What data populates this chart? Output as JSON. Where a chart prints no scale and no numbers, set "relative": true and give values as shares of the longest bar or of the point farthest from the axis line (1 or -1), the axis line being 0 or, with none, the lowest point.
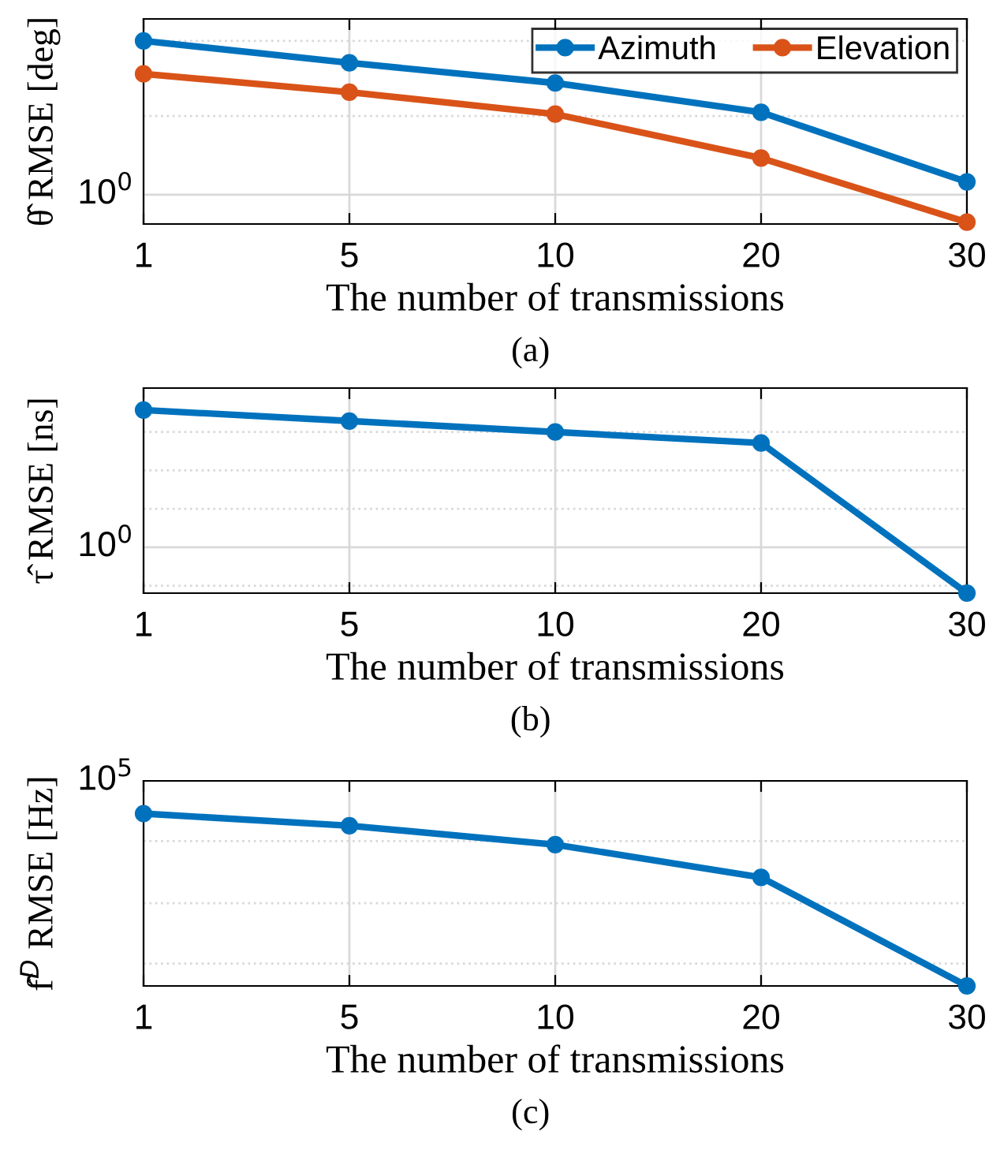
{
  "chart_data": [
    {
      "type": "line",
      "relative": true,
      "categories": [
        "1",
        "5",
        "10",
        "20",
        "30"
      ],
      "xlabel": "The number of transmissions",
      "ylabel": "θ̂ RMSE [deg]",
      "grid": "x",
      "legend": "top right",
      "marker": "circle",
      "line_style": "solid",
      "series": [
        {
          "name": "Azimuth",
          "color": "#0072bd",
          "values": [
            1,
            0.88,
            0.77,
            0.61,
            0.23
          ]
        },
        {
          "name": "Elevation",
          "color": "#d95319",
          "values": [
            0.82,
            0.72,
            0.6,
            0.36,
            0.01
          ]
        }
      ],
      "ref_lines": [
        {
          "axis": "y",
          "value": 0.16,
          "color": "#d9d9d9",
          "line_style": "solid"
        },
        {
          "axis": "y",
          "value": 0.59,
          "color": "#d9d9d9",
          "line_style": "dotted"
        },
        {
          "axis": "y",
          "value": 1.0,
          "color": "#d9d9d9",
          "line_style": "dotted"
        }
      ],
      "annotations": [
        "10$^{0}$",
        "(a)"
      ]
    },
    {
      "type": "line",
      "relative": true,
      "categories": [
        "1",
        "5",
        "10",
        "20",
        "30"
      ],
      "xlabel": "The number of transmissions",
      "ylabel": "τ̂ RMSE [ns]",
      "grid": "x",
      "marker": "circle",
      "line_style": "solid",
      "series": [
        {
          "color": "#0072bd",
          "values": [
            1,
            0.94,
            0.88,
            0.82,
            0
          ]
        }
      ],
      "ref_lines": [
        {
          "axis": "y",
          "value": 0.25,
          "color": "#d9d9d9",
          "line_style": "solid"
        },
        {
          "axis": "y",
          "value": 0.04,
          "color": "#d9d9d9",
          "line_style": "dotted"
        },
        {
          "axis": "y",
          "value": 0.46,
          "color": "#d9d9d9",
          "line_style": "dotted"
        },
        {
          "axis": "y",
          "value": 0.67,
          "color": "#d9d9d9",
          "line_style": "dotted"
        },
        {
          "axis": "y",
          "value": 0.88,
          "color": "#d9d9d9",
          "line_style": "dotted"
        }
      ],
      "annotations": [
        "10$^{0}$",
        "(b)"
      ]
    },
    {
      "type": "line",
      "relative": true,
      "categories": [
        "1",
        "5",
        "10",
        "20",
        "30"
      ],
      "xlabel": "The number of transmissions",
      "ylabel": "f̂$^{D}$ RMSE [Hz]",
      "grid": "x",
      "marker": "circle",
      "line_style": "solid",
      "series": [
        {
          "color": "#0072bd",
          "values": [
            1,
            0.93,
            0.82,
            0.63,
            0
          ]
        }
      ],
      "ref_lines": [
        {
          "axis": "y",
          "value": 1.19,
          "color": "#d9d9d9",
          "line_style": "solid"
        },
        {
          "axis": "y",
          "value": 0.84,
          "color": "#d9d9d9",
          "line_style": "dotted"
        },
        {
          "axis": "y",
          "value": 0.48,
          "color": "#d9d9d9",
          "line_style": "dotted"
        },
        {
          "axis": "y",
          "value": 0.13,
          "color": "#d9d9d9",
          "line_style": "dotted"
        }
      ],
      "annotations": [
        "10$^{5}$",
        "(c)"
      ]
    }
  ]
}
